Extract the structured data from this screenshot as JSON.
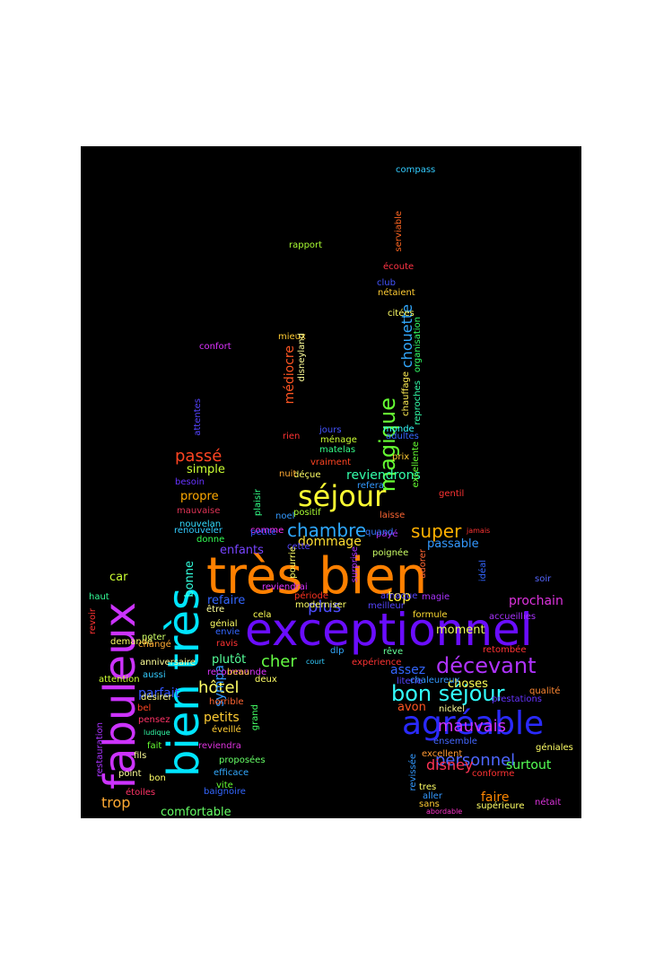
{
  "cloud": {
    "title": "",
    "background": "#000000",
    "words": [
      {
        "t": "très bien",
        "c": "#ff8000"
      },
      {
        "t": "exceptionnel",
        "c": "#6a0dff"
      },
      {
        "t": "fabuleux",
        "c": "#cc33ff"
      },
      {
        "t": "bien très",
        "c": "#00e5ff"
      },
      {
        "t": "agréable",
        "c": "#2a2aff"
      },
      {
        "t": "séjour",
        "c": "#ffff33"
      },
      {
        "t": "bon séjour",
        "c": "#33ffff"
      },
      {
        "t": "décevant",
        "c": "#b033ff"
      },
      {
        "t": "magique",
        "c": "#66ff33"
      },
      {
        "t": "chambre",
        "c": "#2ea8ff"
      },
      {
        "t": "super",
        "c": "#ffb000"
      },
      {
        "t": "personnel",
        "c": "#4d66ff"
      },
      {
        "t": "mauvais",
        "c": "#cc33ff"
      },
      {
        "t": "passé",
        "c": "#ff4422"
      },
      {
        "t": "cher",
        "c": "#66ff44"
      },
      {
        "t": "hôtel",
        "c": "#ffff66"
      },
      {
        "t": "plus",
        "c": "#4d4dff"
      },
      {
        "t": "disney",
        "c": "#ff3355"
      },
      {
        "t": "top",
        "c": "#ffee33"
      },
      {
        "t": "trop",
        "c": "#ffaa33"
      },
      {
        "t": "chouette",
        "c": "#33aaff"
      },
      {
        "t": "reviendrons",
        "c": "#33ffaa"
      },
      {
        "t": "parfait",
        "c": "#3355ff"
      },
      {
        "t": "sympa",
        "c": "#3399ff"
      },
      {
        "t": "médiocre",
        "c": "#ff5522"
      },
      {
        "t": "prochain",
        "c": "#dd33dd"
      },
      {
        "t": "dommage",
        "c": "#ffdd33"
      },
      {
        "t": "assez",
        "c": "#3366ff"
      },
      {
        "t": "petits",
        "c": "#ffcc33"
      },
      {
        "t": "faire",
        "c": "#ff8800"
      },
      {
        "t": "surtout",
        "c": "#55ff55"
      },
      {
        "t": "choses",
        "c": "#ffff55"
      },
      {
        "t": "comfortable",
        "c": "#66ff66"
      },
      {
        "t": "simple",
        "c": "#ccff33"
      },
      {
        "t": "propre",
        "c": "#ffaa00"
      },
      {
        "t": "moment",
        "c": "#eeff55"
      },
      {
        "t": "passable",
        "c": "#3399ff"
      },
      {
        "t": "refaire",
        "c": "#3366ff"
      },
      {
        "t": "enfants",
        "c": "#7744ff"
      },
      {
        "t": "plutôt",
        "c": "#55ff99"
      },
      {
        "t": "car",
        "c": "#ccff33"
      },
      {
        "t": "bonne",
        "c": "#33ffdd"
      },
      {
        "t": "avon",
        "c": "#ff5522"
      },
      {
        "t": "compass",
        "c": "#33ccff"
      },
      {
        "t": "rapport",
        "c": "#aaff33"
      },
      {
        "t": "serviable",
        "c": "#ff6622"
      },
      {
        "t": "écoute",
        "c": "#ff3344"
      },
      {
        "t": "club",
        "c": "#4455ff"
      },
      {
        "t": "nétaient",
        "c": "#ffcc33"
      },
      {
        "t": "citées",
        "c": "#ffff66"
      },
      {
        "t": "organisation",
        "c": "#33ff66"
      },
      {
        "t": "reproches",
        "c": "#33ffaa"
      },
      {
        "t": "chauffage",
        "c": "#ffee55"
      },
      {
        "t": "confort",
        "c": "#dd33ff"
      },
      {
        "t": "mieux",
        "c": "#ffcc33"
      },
      {
        "t": "disneyland",
        "c": "#ffff99"
      },
      {
        "t": "attentes",
        "c": "#5544ff"
      },
      {
        "t": "rien",
        "c": "#ff3333"
      },
      {
        "t": "monde",
        "c": "#33ffff"
      },
      {
        "t": "jours",
        "c": "#4455ff"
      },
      {
        "t": "adultes",
        "c": "#3366ff"
      },
      {
        "t": "ménage",
        "c": "#ccff33"
      },
      {
        "t": "matelas",
        "c": "#33ff88"
      },
      {
        "t": "prix",
        "c": "#ffcc33"
      },
      {
        "t": "vraiment",
        "c": "#ff4422"
      },
      {
        "t": "excellente",
        "c": "#66ff33"
      },
      {
        "t": "besoin",
        "c": "#6633ff"
      },
      {
        "t": "déçue",
        "c": "#ffff66"
      },
      {
        "t": "nuit",
        "c": "#ffaa33"
      },
      {
        "t": "refera",
        "c": "#3399ff"
      },
      {
        "t": "gentil",
        "c": "#ff3333"
      },
      {
        "t": "plaisir",
        "c": "#33ff88"
      },
      {
        "t": "positif",
        "c": "#aaff33"
      },
      {
        "t": "mauvaise",
        "c": "#dd3355"
      },
      {
        "t": "laisse",
        "c": "#ff6633"
      },
      {
        "t": "nouvelan",
        "c": "#33ddff"
      },
      {
        "t": "noel",
        "c": "#3399ff"
      },
      {
        "t": "renouveler",
        "c": "#33ccff"
      },
      {
        "t": "comme",
        "c": "#ff33ff"
      },
      {
        "t": "jamais",
        "c": "#ff3333"
      },
      {
        "t": "petite",
        "c": "#3355ff"
      },
      {
        "t": "payé",
        "c": "#aa33ff"
      },
      {
        "t": "donne",
        "c": "#33ff55"
      },
      {
        "t": "quand",
        "c": "#3377ff"
      },
      {
        "t": "cette",
        "c": "#5544ff"
      },
      {
        "t": "pourrie",
        "c": "#ffff66"
      },
      {
        "t": "surprise",
        "c": "#aa33ff"
      },
      {
        "t": "poignée",
        "c": "#ccff66"
      },
      {
        "t": "adorer",
        "c": "#ff6633"
      },
      {
        "t": "idéal",
        "c": "#3366ff"
      },
      {
        "t": "reviendrai",
        "c": "#dd33ff"
      },
      {
        "t": "soir",
        "c": "#5566ff"
      },
      {
        "t": "haut",
        "c": "#33ff99"
      },
      {
        "t": "revoir",
        "c": "#ff3333"
      },
      {
        "t": "période",
        "c": "#ff3322"
      },
      {
        "t": "être",
        "c": "#ffff99"
      },
      {
        "t": "arnaque",
        "c": "#5544ff"
      },
      {
        "t": "magie",
        "c": "#aa33ff"
      },
      {
        "t": "moderniser",
        "c": "#ffff66"
      },
      {
        "t": "cela",
        "c": "#ffff55"
      },
      {
        "t": "meilleur",
        "c": "#5544ff"
      },
      {
        "t": "formule",
        "c": "#ffdd33"
      },
      {
        "t": "accueillies",
        "c": "#aa33ff"
      },
      {
        "t": "génial",
        "c": "#ffff66"
      },
      {
        "t": "noter",
        "c": "#ccff66"
      },
      {
        "t": "envie",
        "c": "#3366ff"
      },
      {
        "t": "demandé",
        "c": "#ffff66"
      },
      {
        "t": "ravis",
        "c": "#ff3333"
      },
      {
        "t": "changé",
        "c": "#ffaa33"
      },
      {
        "t": "dlp",
        "c": "#33aaff"
      },
      {
        "t": "rêve",
        "c": "#66ff99"
      },
      {
        "t": "retombée",
        "c": "#ff3333"
      },
      {
        "t": "anniversaire",
        "c": "#ffff99"
      },
      {
        "t": "court",
        "c": "#33ccff"
      },
      {
        "t": "expérience",
        "c": "#ff3333"
      },
      {
        "t": "recommande",
        "c": "#dd33ff"
      },
      {
        "t": "beau",
        "c": "#ffcc33"
      },
      {
        "t": "attention",
        "c": "#ccff33"
      },
      {
        "t": "aussi",
        "c": "#33ccff"
      },
      {
        "t": "deux",
        "c": "#ffff66"
      },
      {
        "t": "literie",
        "c": "#5544ff"
      },
      {
        "t": "chaleureux",
        "c": "#3399ff"
      },
      {
        "t": "qualité",
        "c": "#ff8833"
      },
      {
        "t": "désirer",
        "c": "#ffff88"
      },
      {
        "t": "horrible",
        "c": "#ff6633"
      },
      {
        "t": "nickel",
        "c": "#ffff99"
      },
      {
        "t": "bel",
        "c": "#ff4422"
      },
      {
        "t": "grand",
        "c": "#44ff66"
      },
      {
        "t": "pensez",
        "c": "#ff3366"
      },
      {
        "t": "prestations",
        "c": "#6633ff"
      },
      {
        "t": "ludique",
        "c": "#33ffaa"
      },
      {
        "t": "éveillé",
        "c": "#ffcc33"
      },
      {
        "t": "ensemble",
        "c": "#4466ff"
      },
      {
        "t": "restauration",
        "c": "#aa33ff"
      },
      {
        "t": "fait",
        "c": "#66ff33"
      },
      {
        "t": "reviendra",
        "c": "#dd33dd"
      },
      {
        "t": "excellent",
        "c": "#ff9933"
      },
      {
        "t": "géniales",
        "c": "#ffff66"
      },
      {
        "t": "fils",
        "c": "#ffff99"
      },
      {
        "t": "proposées",
        "c": "#66ff66"
      },
      {
        "t": "revissée",
        "c": "#3399ff"
      },
      {
        "t": "efficace",
        "c": "#33aaff"
      },
      {
        "t": "conforme",
        "c": "#ff3333"
      },
      {
        "t": "point",
        "c": "#ffff99"
      },
      {
        "t": "bon",
        "c": "#ffff66"
      },
      {
        "t": "vite",
        "c": "#66ff33"
      },
      {
        "t": "tres",
        "c": "#ffff66"
      },
      {
        "t": "étoiles",
        "c": "#ff3366"
      },
      {
        "t": "baignoire",
        "c": "#3366ff"
      },
      {
        "t": "aller",
        "c": "#3399ff"
      },
      {
        "t": "nétait",
        "c": "#dd33dd"
      },
      {
        "t": "sans",
        "c": "#ffcc33"
      },
      {
        "t": "supérieure",
        "c": "#ffff66"
      },
      {
        "t": "abordable",
        "c": "#ff33cc"
      }
    ]
  }
}
